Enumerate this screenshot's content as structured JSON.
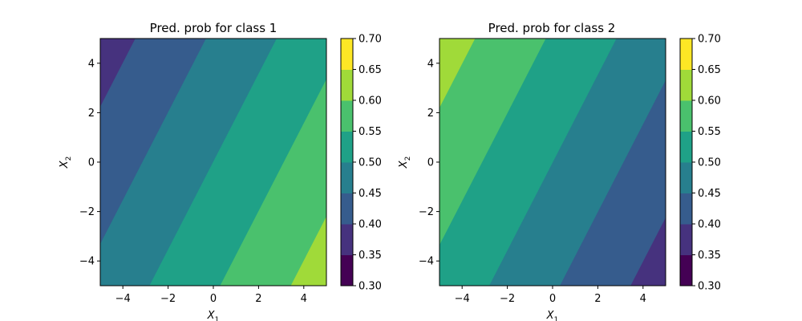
{
  "chart_data": [
    {
      "type": "heatmap",
      "subtype": "filled-contour",
      "title": "Pred. prob for class 1",
      "xlabel": "X",
      "xlabel_sub": "1",
      "ylabel": "X",
      "ylabel_sub": "2",
      "xlim": [
        -5,
        5
      ],
      "ylim": [
        -5,
        5
      ],
      "xticks": [
        "−4",
        "−2",
        "0",
        "2",
        "4"
      ],
      "yticks": [
        "−4",
        "−2",
        "0",
        "2",
        "4"
      ],
      "xtick_values": [
        -4,
        -2,
        0,
        2,
        4
      ],
      "ytick_values": [
        -4,
        -2,
        0,
        2,
        4
      ],
      "contour_function": {
        "intercept": 0.5,
        "coef_x1": 0.016,
        "coef_x2": -0.009
      },
      "levels": [
        0.3,
        0.35,
        0.4,
        0.45,
        0.5,
        0.55,
        0.6,
        0.65,
        0.7
      ],
      "colorbar": {
        "ticks": [
          "0.30",
          "0.35",
          "0.40",
          "0.45",
          "0.50",
          "0.55",
          "0.60",
          "0.65",
          "0.70"
        ],
        "colors": [
          "#440154",
          "#46327e",
          "#365c8d",
          "#277f8e",
          "#1fa187",
          "#4ac16d",
          "#a0da39",
          "#fde725"
        ]
      },
      "grid": false
    },
    {
      "type": "heatmap",
      "subtype": "filled-contour",
      "title": "Pred. prob for class 2",
      "xlabel": "X",
      "xlabel_sub": "1",
      "ylabel": "X",
      "ylabel_sub": "2",
      "xlim": [
        -5,
        5
      ],
      "ylim": [
        -5,
        5
      ],
      "xticks": [
        "−4",
        "−2",
        "0",
        "2",
        "4"
      ],
      "yticks": [
        "−4",
        "−2",
        "0",
        "2",
        "4"
      ],
      "xtick_values": [
        -4,
        -2,
        0,
        2,
        4
      ],
      "ytick_values": [
        -4,
        -2,
        0,
        2,
        4
      ],
      "contour_function": {
        "intercept": 0.5,
        "coef_x1": -0.016,
        "coef_x2": 0.009
      },
      "levels": [
        0.3,
        0.35,
        0.4,
        0.45,
        0.5,
        0.55,
        0.6,
        0.65,
        0.7
      ],
      "colorbar": {
        "ticks": [
          "0.30",
          "0.35",
          "0.40",
          "0.45",
          "0.50",
          "0.55",
          "0.60",
          "0.65",
          "0.70"
        ],
        "colors": [
          "#440154",
          "#46327e",
          "#365c8d",
          "#277f8e",
          "#1fa187",
          "#4ac16d",
          "#a0da39",
          "#fde725"
        ]
      },
      "grid": false
    }
  ]
}
